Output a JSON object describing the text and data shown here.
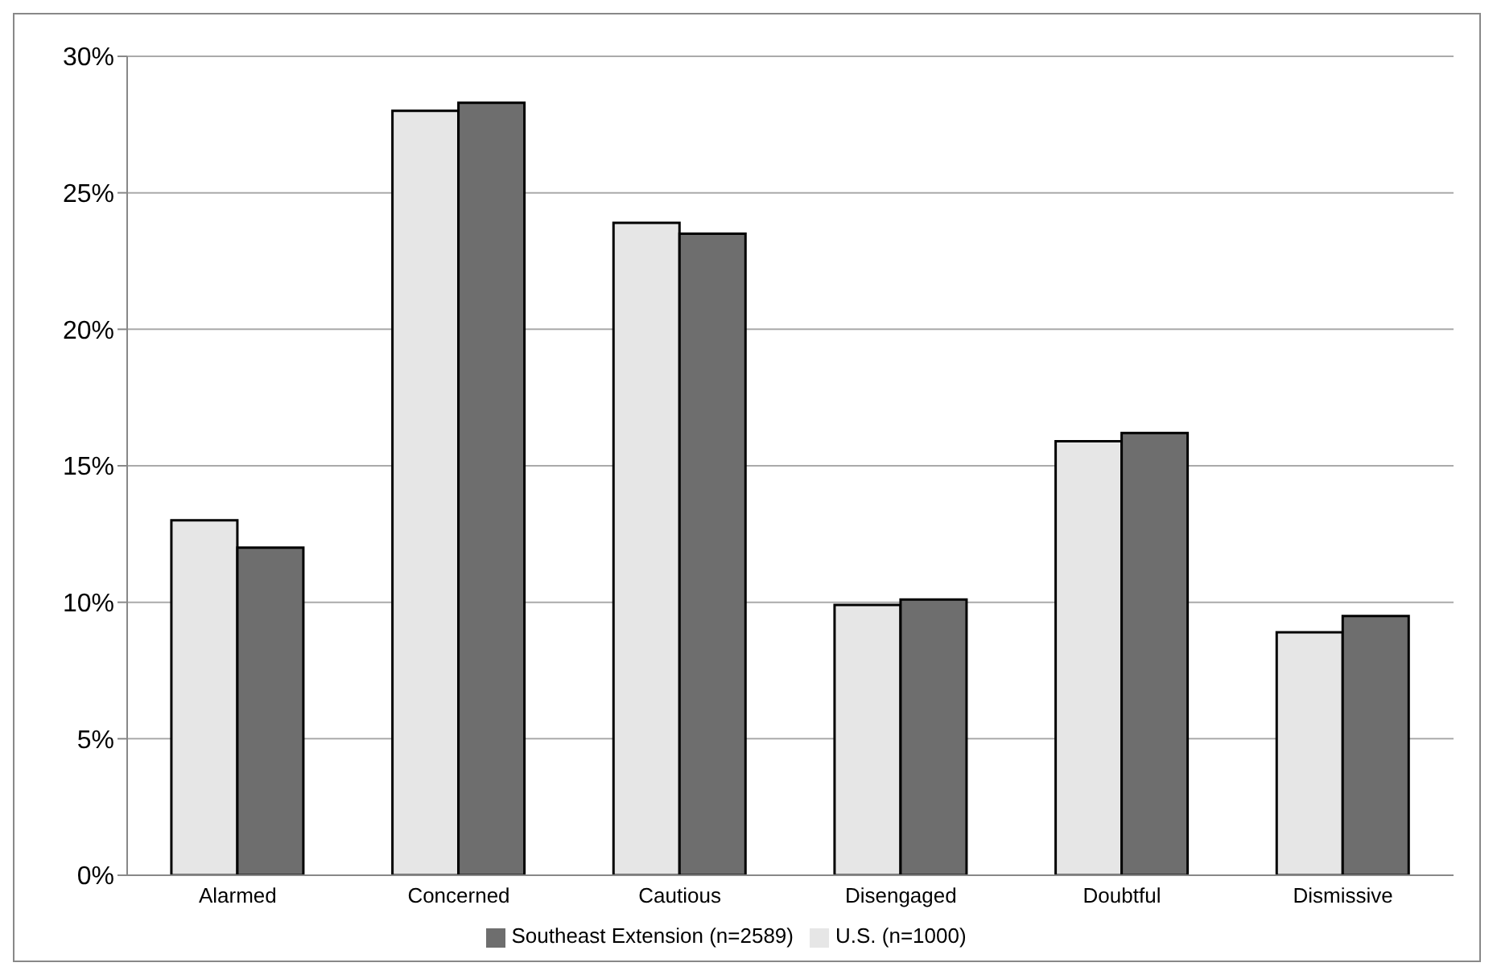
{
  "chart_data": {
    "type": "bar",
    "categories": [
      "Alarmed",
      "Concerned",
      "Cautious",
      "Disengaged",
      "Doubtful",
      "Dismissive"
    ],
    "series": [
      {
        "name": "U.S. (n=1000)",
        "color": "#e6e6e6",
        "values": [
          13,
          28,
          23.9,
          9.9,
          15.9,
          8.9
        ]
      },
      {
        "name": "Southeast Extension (n=2589)",
        "color": "#6e6e6e",
        "values": [
          12,
          28.3,
          23.5,
          10.1,
          16.2,
          9.5
        ]
      }
    ],
    "ylim": [
      0,
      30
    ],
    "yticks": [
      {
        "value": 0,
        "label": "0%"
      },
      {
        "value": 5,
        "label": "5%"
      },
      {
        "value": 10,
        "label": "10%"
      },
      {
        "value": 15,
        "label": "15%"
      },
      {
        "value": 20,
        "label": "20%"
      },
      {
        "value": 25,
        "label": "25%"
      },
      {
        "value": 30,
        "label": "30%"
      }
    ],
    "grid": "y",
    "legend": "bottom"
  }
}
